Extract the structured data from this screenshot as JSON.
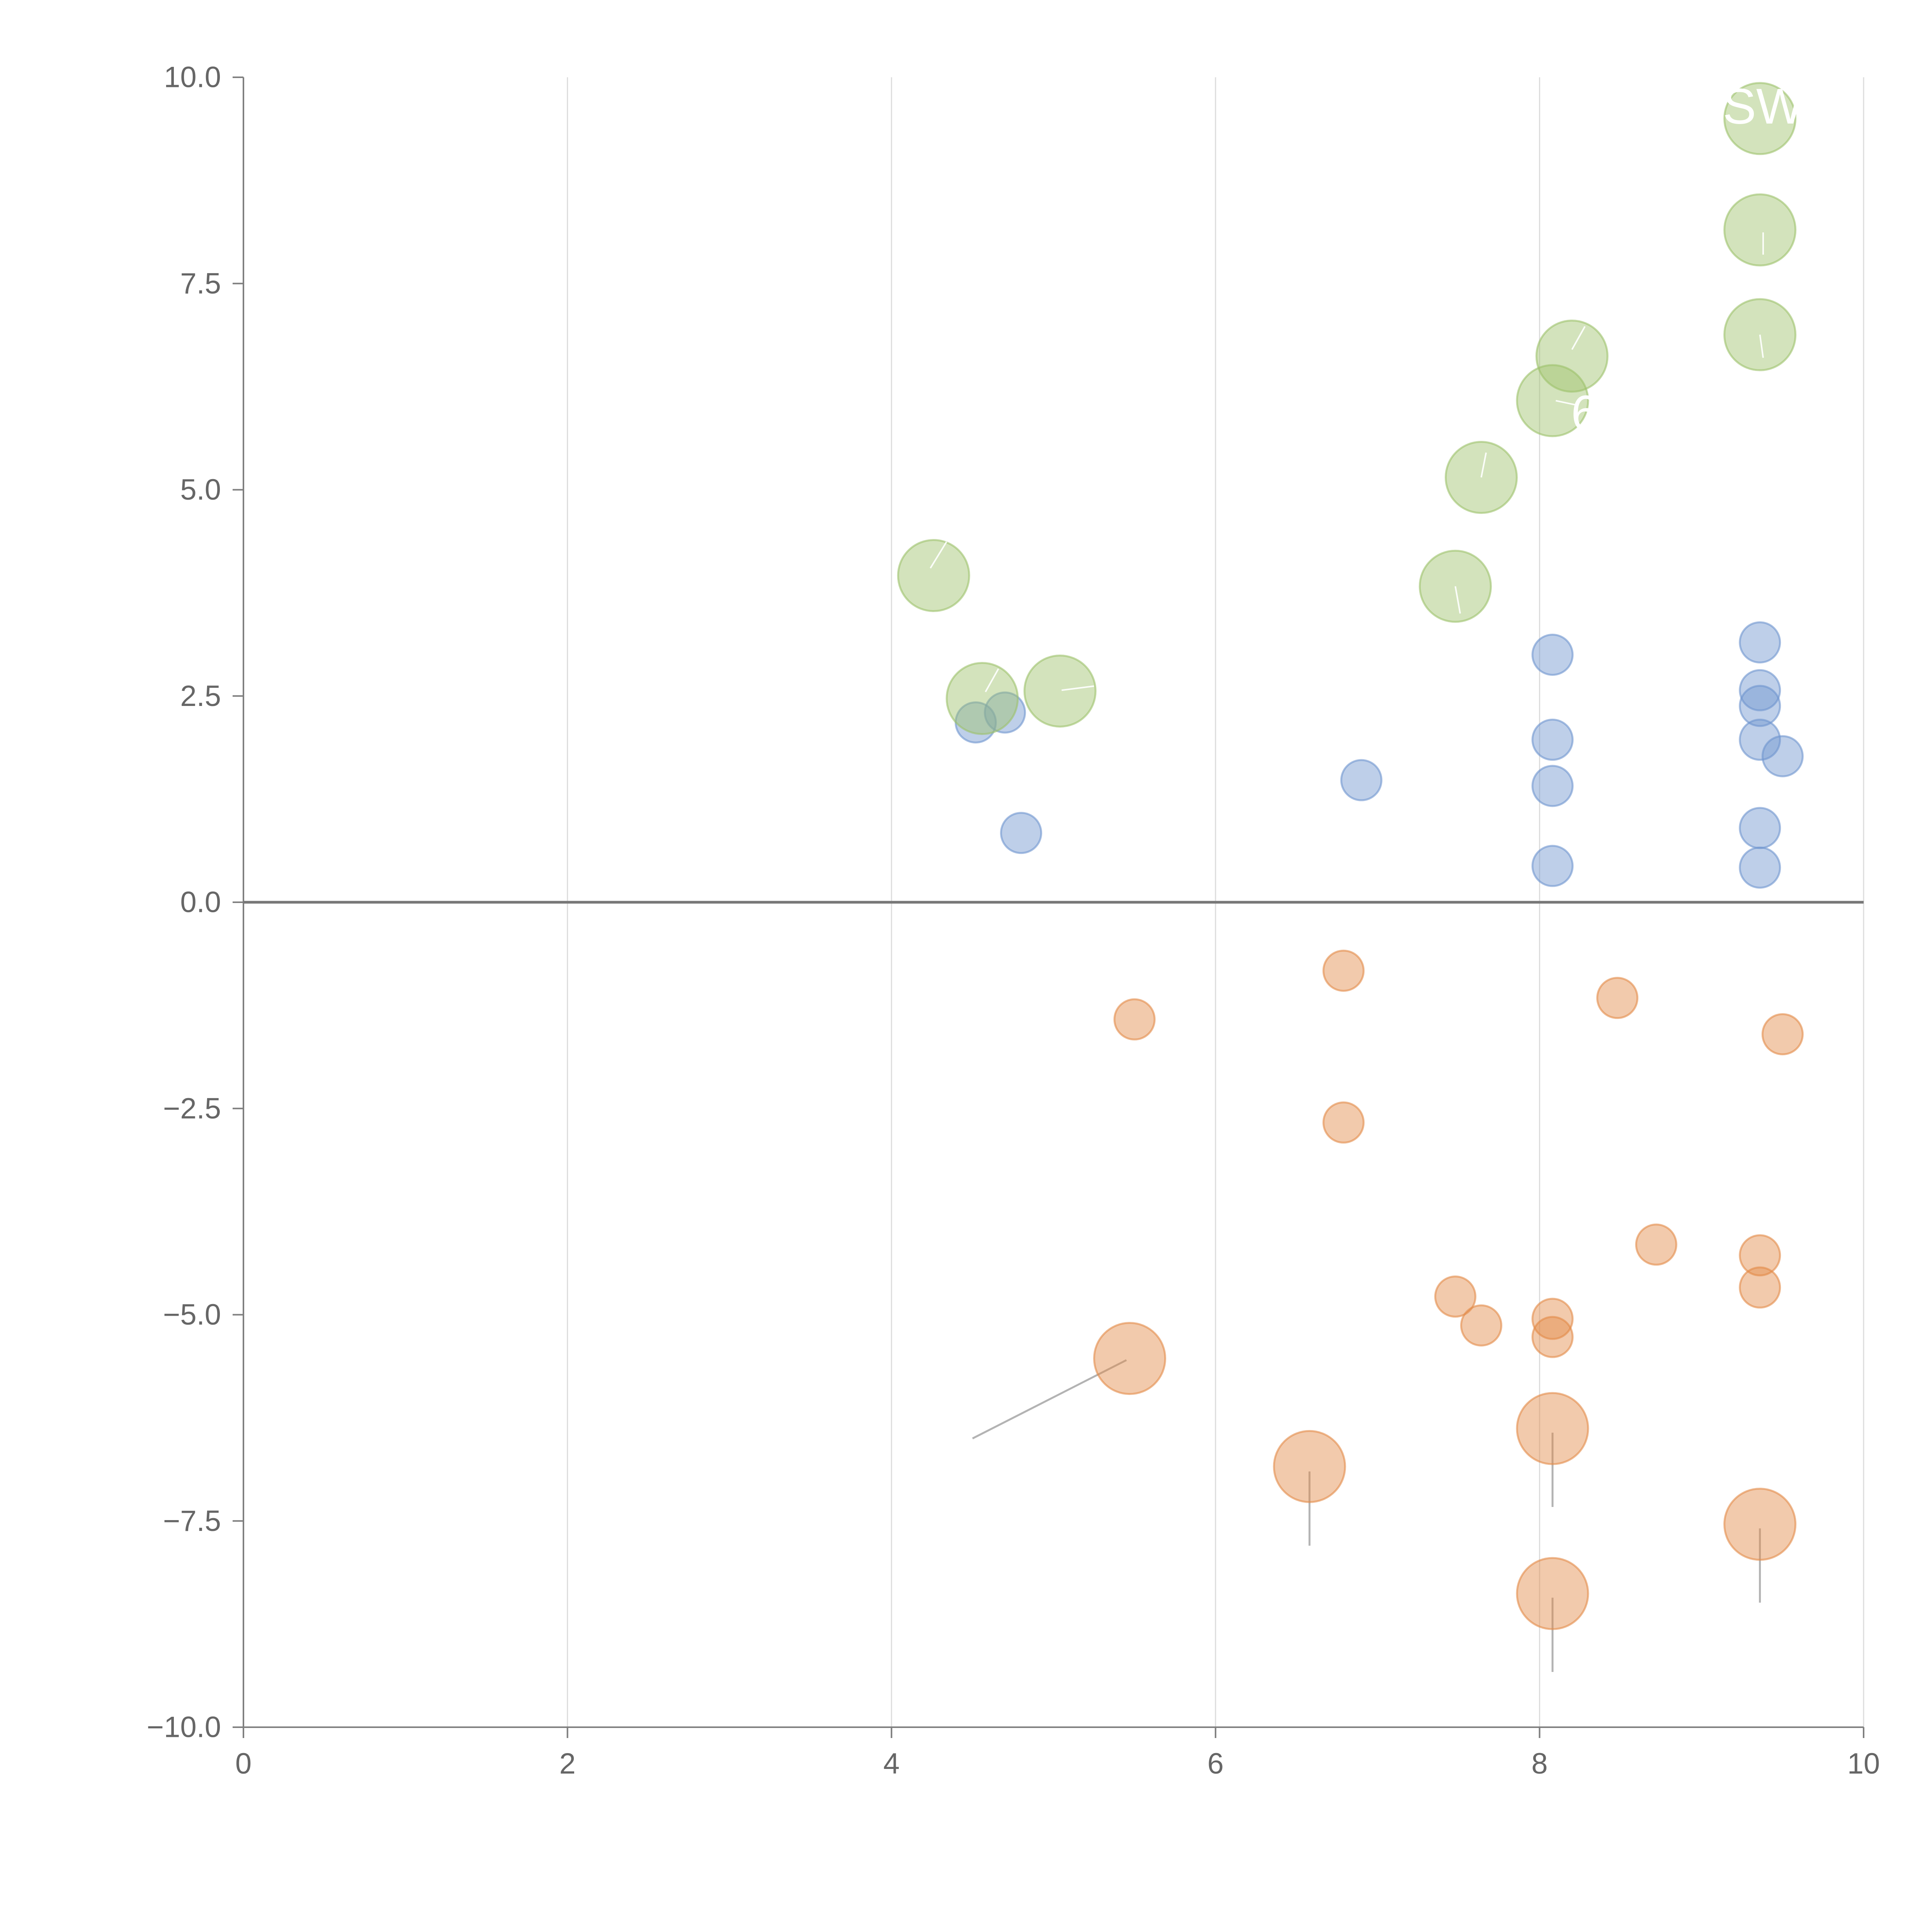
{
  "chart_data": {
    "type": "scatter",
    "title": "",
    "xlabel": "",
    "ylabel": "",
    "xlim": [
      0,
      10
    ],
    "ylim": [
      -10,
      10
    ],
    "x_ticks": [
      {
        "value": 0,
        "label": "0"
      },
      {
        "value": 2,
        "label": "2"
      },
      {
        "value": 4,
        "label": "4"
      },
      {
        "value": 6,
        "label": "6"
      },
      {
        "value": 8,
        "label": "8"
      },
      {
        "value": 10,
        "label": "10"
      }
    ],
    "y_ticks": [
      {
        "value": 10,
        "label": "10.0"
      },
      {
        "value": 7.5,
        "label": "7.5"
      },
      {
        "value": 5,
        "label": "5.0"
      },
      {
        "value": 2.5,
        "label": "2.5"
      },
      {
        "value": 0,
        "label": "0.0"
      },
      {
        "value": -2.5,
        "label": "−2.5"
      },
      {
        "value": -5,
        "label": "−5.0"
      },
      {
        "value": -7.5,
        "label": "−7.5"
      },
      {
        "value": -10,
        "label": "−10.0"
      }
    ],
    "grid": {
      "vertical": true,
      "horizontal": false
    },
    "colors": {
      "blue": "#6e94cf",
      "orange": "#e38a47",
      "green": "#9dc26a",
      "axis": "#7f7f7f",
      "grid": "#dcdcdc",
      "zero_line": "#777777",
      "leader": "#999999"
    },
    "series": [
      {
        "name": "blue",
        "color_key": "blue",
        "size": "small",
        "points": [
          {
            "x": 4.52,
            "y": 2.18
          },
          {
            "x": 4.7,
            "y": 2.3
          },
          {
            "x": 4.8,
            "y": 0.84
          },
          {
            "x": 6.9,
            "y": 1.48
          },
          {
            "x": 8.08,
            "y": 3.0
          },
          {
            "x": 8.08,
            "y": 1.97
          },
          {
            "x": 8.08,
            "y": 1.41
          },
          {
            "x": 8.08,
            "y": 0.44
          },
          {
            "x": 9.36,
            "y": 3.15
          },
          {
            "x": 9.36,
            "y": 2.57
          },
          {
            "x": 9.36,
            "y": 2.38
          },
          {
            "x": 9.36,
            "y": 1.97
          },
          {
            "x": 9.5,
            "y": 1.77
          },
          {
            "x": 9.36,
            "y": 0.9
          },
          {
            "x": 9.36,
            "y": 0.42
          }
        ]
      },
      {
        "name": "orange-small",
        "color_key": "orange",
        "size": "small",
        "points": [
          {
            "x": 5.5,
            "y": -1.42
          },
          {
            "x": 6.79,
            "y": -0.83
          },
          {
            "x": 6.79,
            "y": -2.67
          },
          {
            "x": 8.48,
            "y": -1.16
          },
          {
            "x": 9.5,
            "y": -1.6
          },
          {
            "x": 8.72,
            "y": -4.15
          },
          {
            "x": 7.48,
            "y": -4.78
          },
          {
            "x": 7.64,
            "y": -5.13
          },
          {
            "x": 8.08,
            "y": -5.05
          },
          {
            "x": 8.08,
            "y": -5.27
          },
          {
            "x": 9.36,
            "y": -4.28
          },
          {
            "x": 9.36,
            "y": -4.67
          }
        ]
      },
      {
        "name": "orange-large",
        "color_key": "orange",
        "size": "large",
        "points": [
          {
            "x": 5.47,
            "y": -5.53
          },
          {
            "x": 6.58,
            "y": -6.84
          },
          {
            "x": 8.08,
            "y": -6.38
          },
          {
            "x": 8.08,
            "y": -8.38
          },
          {
            "x": 9.36,
            "y": -7.54
          }
        ]
      },
      {
        "name": "green-large",
        "color_key": "green",
        "size": "large",
        "points": [
          {
            "x": 4.26,
            "y": 3.96
          },
          {
            "x": 4.56,
            "y": 2.47
          },
          {
            "x": 5.04,
            "y": 2.56
          },
          {
            "x": 7.48,
            "y": 3.83
          },
          {
            "x": 7.64,
            "y": 5.15
          },
          {
            "x": 8.08,
            "y": 6.08
          },
          {
            "x": 8.2,
            "y": 6.62
          },
          {
            "x": 9.36,
            "y": 6.88
          },
          {
            "x": 9.36,
            "y": 8.15
          },
          {
            "x": 9.36,
            "y": 9.5
          }
        ]
      }
    ],
    "leader_lines": [
      {
        "x1": 5.45,
        "y1": -5.55,
        "x2": 4.5,
        "y2": -6.5,
        "color_key": "leader"
      },
      {
        "x1": 6.58,
        "y1": -6.9,
        "x2": 6.58,
        "y2": -7.8,
        "color_key": "leader"
      },
      {
        "x1": 8.08,
        "y1": -6.43,
        "x2": 8.08,
        "y2": -7.33,
        "color_key": "leader"
      },
      {
        "x1": 8.08,
        "y1": -8.43,
        "x2": 8.08,
        "y2": -9.33,
        "color_key": "leader"
      },
      {
        "x1": 9.36,
        "y1": -7.59,
        "x2": 9.36,
        "y2": -8.49,
        "color_key": "leader"
      },
      {
        "x1": 4.24,
        "y1": 4.05,
        "x2": 4.34,
        "y2": 4.37,
        "color_key": "white"
      },
      {
        "x1": 4.58,
        "y1": 2.55,
        "x2": 4.66,
        "y2": 2.83,
        "color_key": "white"
      },
      {
        "x1": 5.05,
        "y1": 2.57,
        "x2": 5.25,
        "y2": 2.62,
        "color_key": "white"
      },
      {
        "x1": 7.48,
        "y1": 3.83,
        "x2": 7.51,
        "y2": 3.5,
        "color_key": "white"
      },
      {
        "x1": 7.64,
        "y1": 5.15,
        "x2": 7.67,
        "y2": 5.45,
        "color_key": "white"
      },
      {
        "x1": 8.1,
        "y1": 6.08,
        "x2": 8.22,
        "y2": 6.03,
        "color_key": "white"
      },
      {
        "x1": 8.2,
        "y1": 6.7,
        "x2": 8.28,
        "y2": 6.98,
        "color_key": "white"
      },
      {
        "x1": 9.36,
        "y1": 6.88,
        "x2": 9.38,
        "y2": 6.6,
        "color_key": "white"
      },
      {
        "x1": 9.38,
        "y1": 8.12,
        "x2": 9.38,
        "y2": 7.85,
        "color_key": "white"
      }
    ],
    "annotations": [
      {
        "text": "6",
        "x": 8.28,
        "y": 5.93
      },
      {
        "text": "SW",
        "x": 9.38,
        "y": 9.65
      }
    ]
  }
}
